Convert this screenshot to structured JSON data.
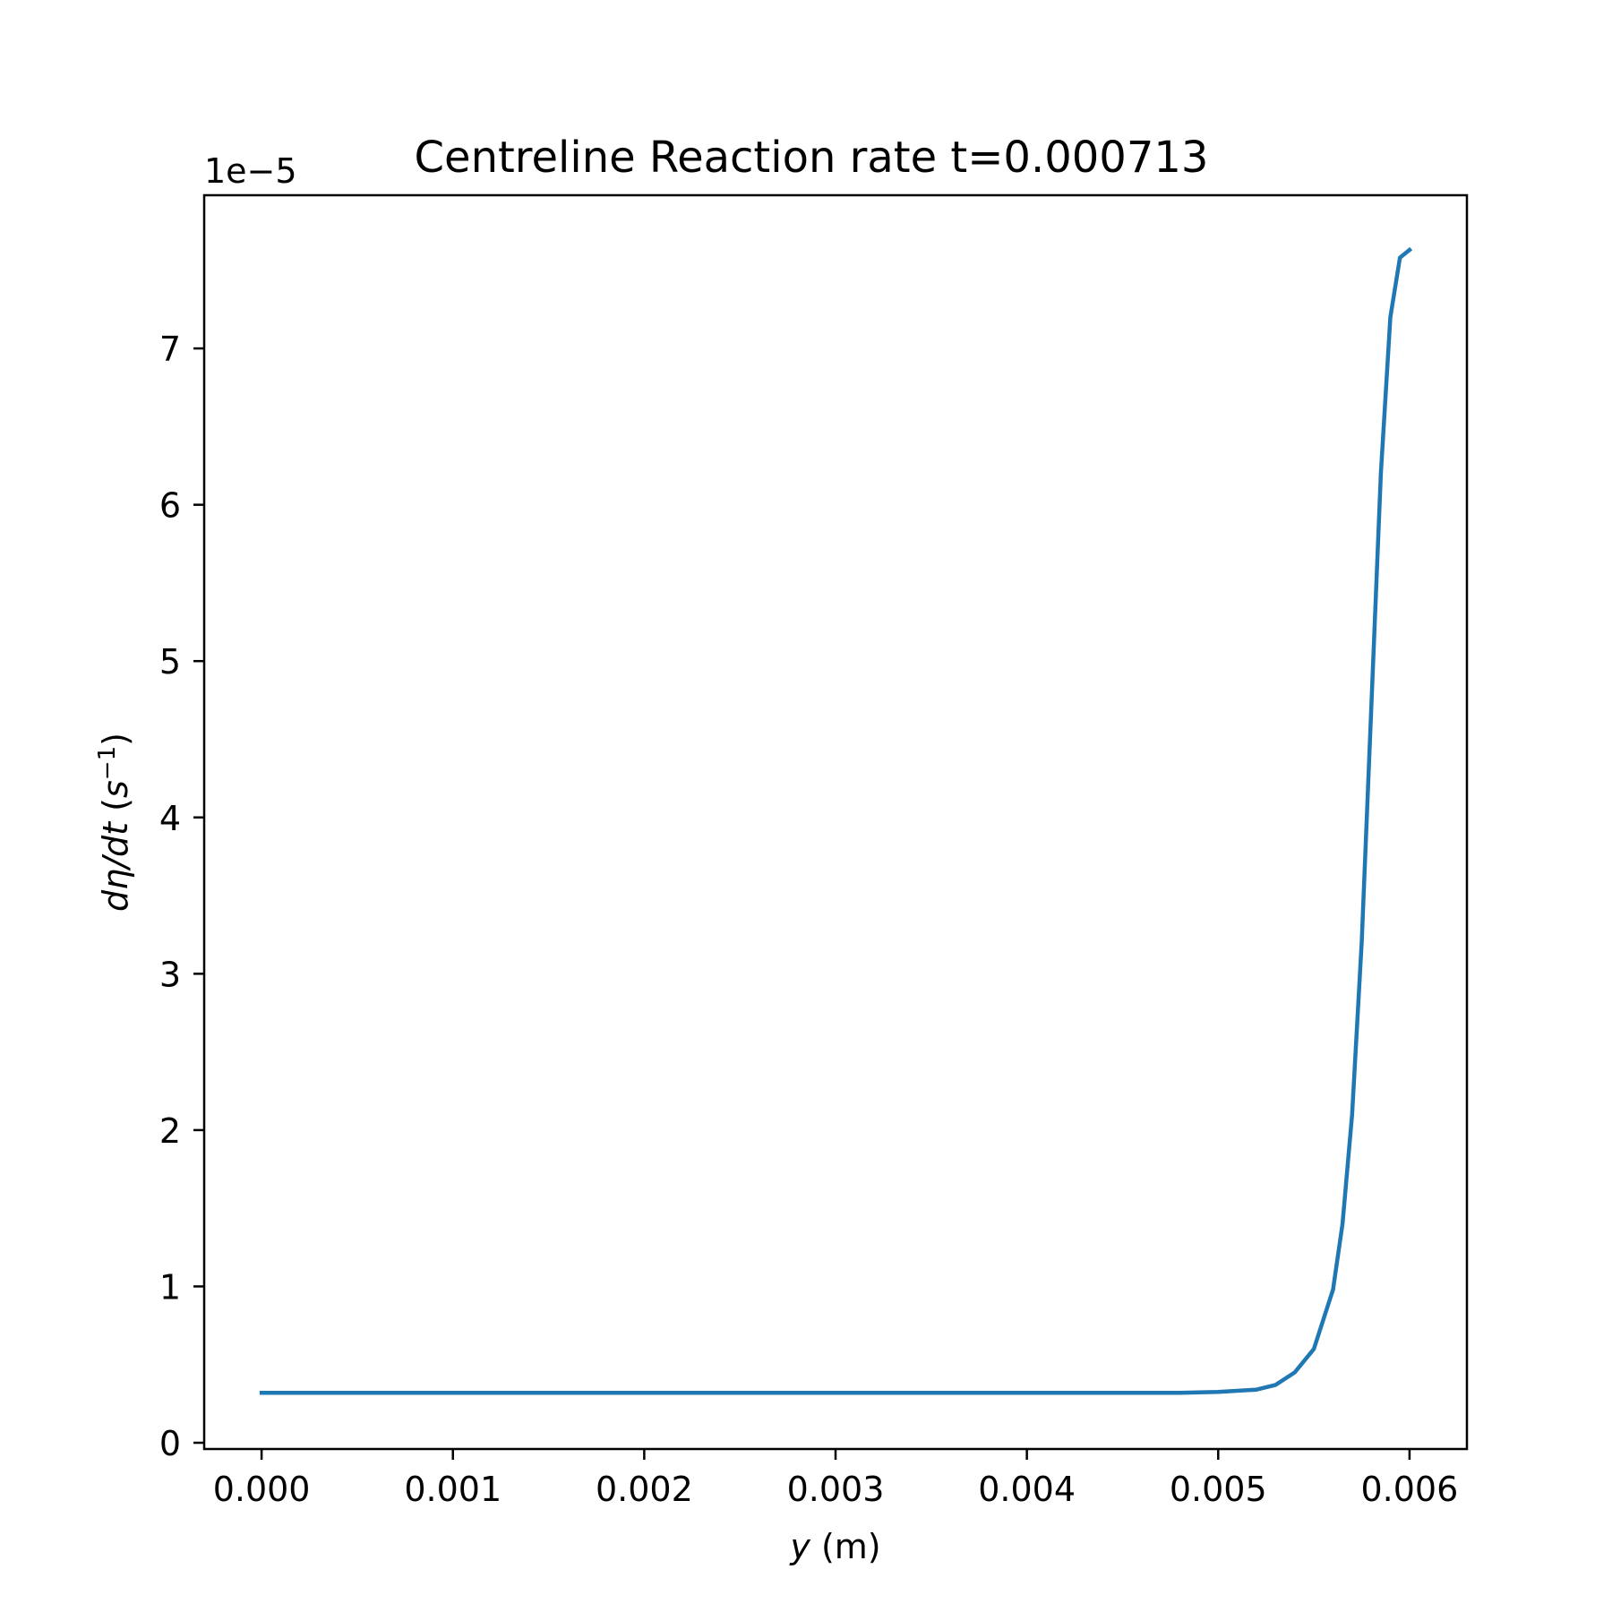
{
  "chart_data": {
    "type": "line",
    "title": "Centreline Reaction rate t=0.000713",
    "xlabel": {
      "var": "y",
      "unit": " (m)"
    },
    "ylabel": {
      "var": "dη/dt",
      "unit_open": " (",
      "unit_base": "s",
      "unit_exp": "−1",
      "unit_close": ")"
    },
    "y_offset_label": "1e−5",
    "xlim": [
      -0.0003,
      0.0063
    ],
    "ylim": [
      -0.04,
      7.98
    ],
    "y_scale_factor": 1e-05,
    "grid": false,
    "x_ticks": [
      {
        "value": 0.0,
        "label": "0.000"
      },
      {
        "value": 0.001,
        "label": "0.001"
      },
      {
        "value": 0.002,
        "label": "0.002"
      },
      {
        "value": 0.003,
        "label": "0.003"
      },
      {
        "value": 0.004,
        "label": "0.004"
      },
      {
        "value": 0.005,
        "label": "0.005"
      },
      {
        "value": 0.006,
        "label": "0.006"
      }
    ],
    "y_ticks": [
      {
        "value": 0,
        "label": "0"
      },
      {
        "value": 1,
        "label": "1"
      },
      {
        "value": 2,
        "label": "2"
      },
      {
        "value": 3,
        "label": "3"
      },
      {
        "value": 4,
        "label": "4"
      },
      {
        "value": 5,
        "label": "5"
      },
      {
        "value": 6,
        "label": "6"
      },
      {
        "value": 7,
        "label": "7"
      }
    ],
    "series": [
      {
        "color": "#1f77b4",
        "x": [
          0.0,
          0.001,
          0.002,
          0.003,
          0.004,
          0.0048,
          0.005,
          0.0052,
          0.0053,
          0.0054,
          0.0055,
          0.0056,
          0.00565,
          0.0057,
          0.00575,
          0.0058,
          0.00585,
          0.0059,
          0.00595,
          0.006
        ],
        "y": [
          0.32,
          0.32,
          0.32,
          0.32,
          0.32,
          0.32,
          0.325,
          0.34,
          0.37,
          0.45,
          0.6,
          0.98,
          1.4,
          2.1,
          3.2,
          4.7,
          6.2,
          7.2,
          7.58,
          7.63
        ]
      }
    ]
  }
}
